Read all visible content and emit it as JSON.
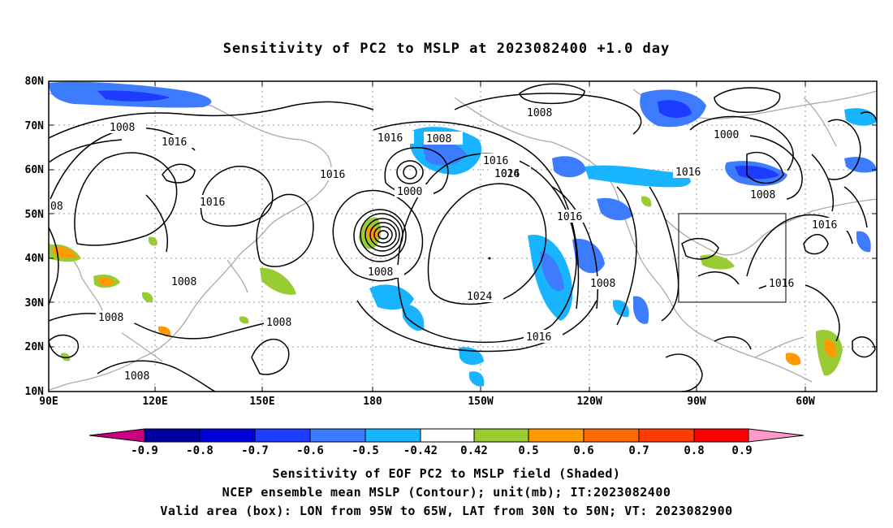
{
  "title": "Sensitivity of PC2 to MSLP at 2023082400 +1.0 day",
  "map": {
    "lat_labels": [
      "80N",
      "70N",
      "60N",
      "50N",
      "40N",
      "30N",
      "20N",
      "10N"
    ],
    "lon_labels": [
      "90E",
      "120E",
      "150E",
      "180",
      "150W",
      "120W",
      "90W",
      "60W"
    ],
    "contour_labels": [
      "1008",
      "1016",
      "1016",
      "1016",
      "1016",
      "1008",
      "1016",
      "1008",
      "1000",
      "1016",
      "1024",
      "1008",
      "1000",
      "1016",
      "1008",
      "1016",
      "1016",
      "1008",
      "1024",
      "1016",
      "1008",
      "1008",
      "1008",
      "1008",
      "1016",
      "08",
      "1008"
    ],
    "box_region": "95W-65W, 30N-50N"
  },
  "colorbar": {
    "labels": [
      "-0.9",
      "-0.8",
      "-0.7",
      "-0.6",
      "-0.5",
      "-0.42",
      "0.42",
      "0.5",
      "0.6",
      "0.7",
      "0.8",
      "0.9"
    ],
    "colors": [
      "#c8007f",
      "#00009f",
      "#0000d8",
      "#1d3cff",
      "#3d7bff",
      "#18b4ff",
      "#11d4ff",
      "#ffffff",
      "#99cc33",
      "#ff9a00",
      "#ff6a00",
      "#ff3b00",
      "#ff0000",
      "#ff99c8"
    ]
  },
  "captions": {
    "line1": "Sensitivity of EOF PC2 to MSLP field (Shaded)",
    "line2": "NCEP ensemble mean MSLP (Contour); unit(mb); IT:2023082400",
    "line3": "Valid area (box): LON from 95W to 65W, LAT from 30N to 50N; VT: 2023082900"
  }
}
